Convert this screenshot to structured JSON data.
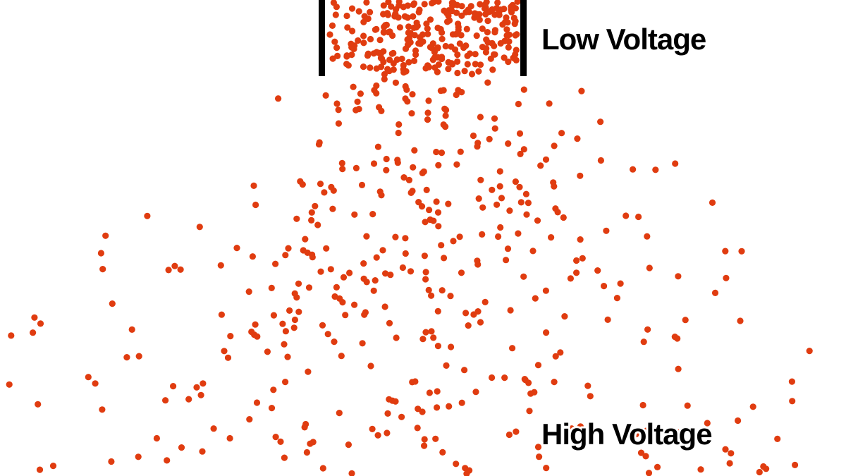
{
  "labels": {
    "low": "Low Voltage",
    "high": "High Voltage"
  }
}
